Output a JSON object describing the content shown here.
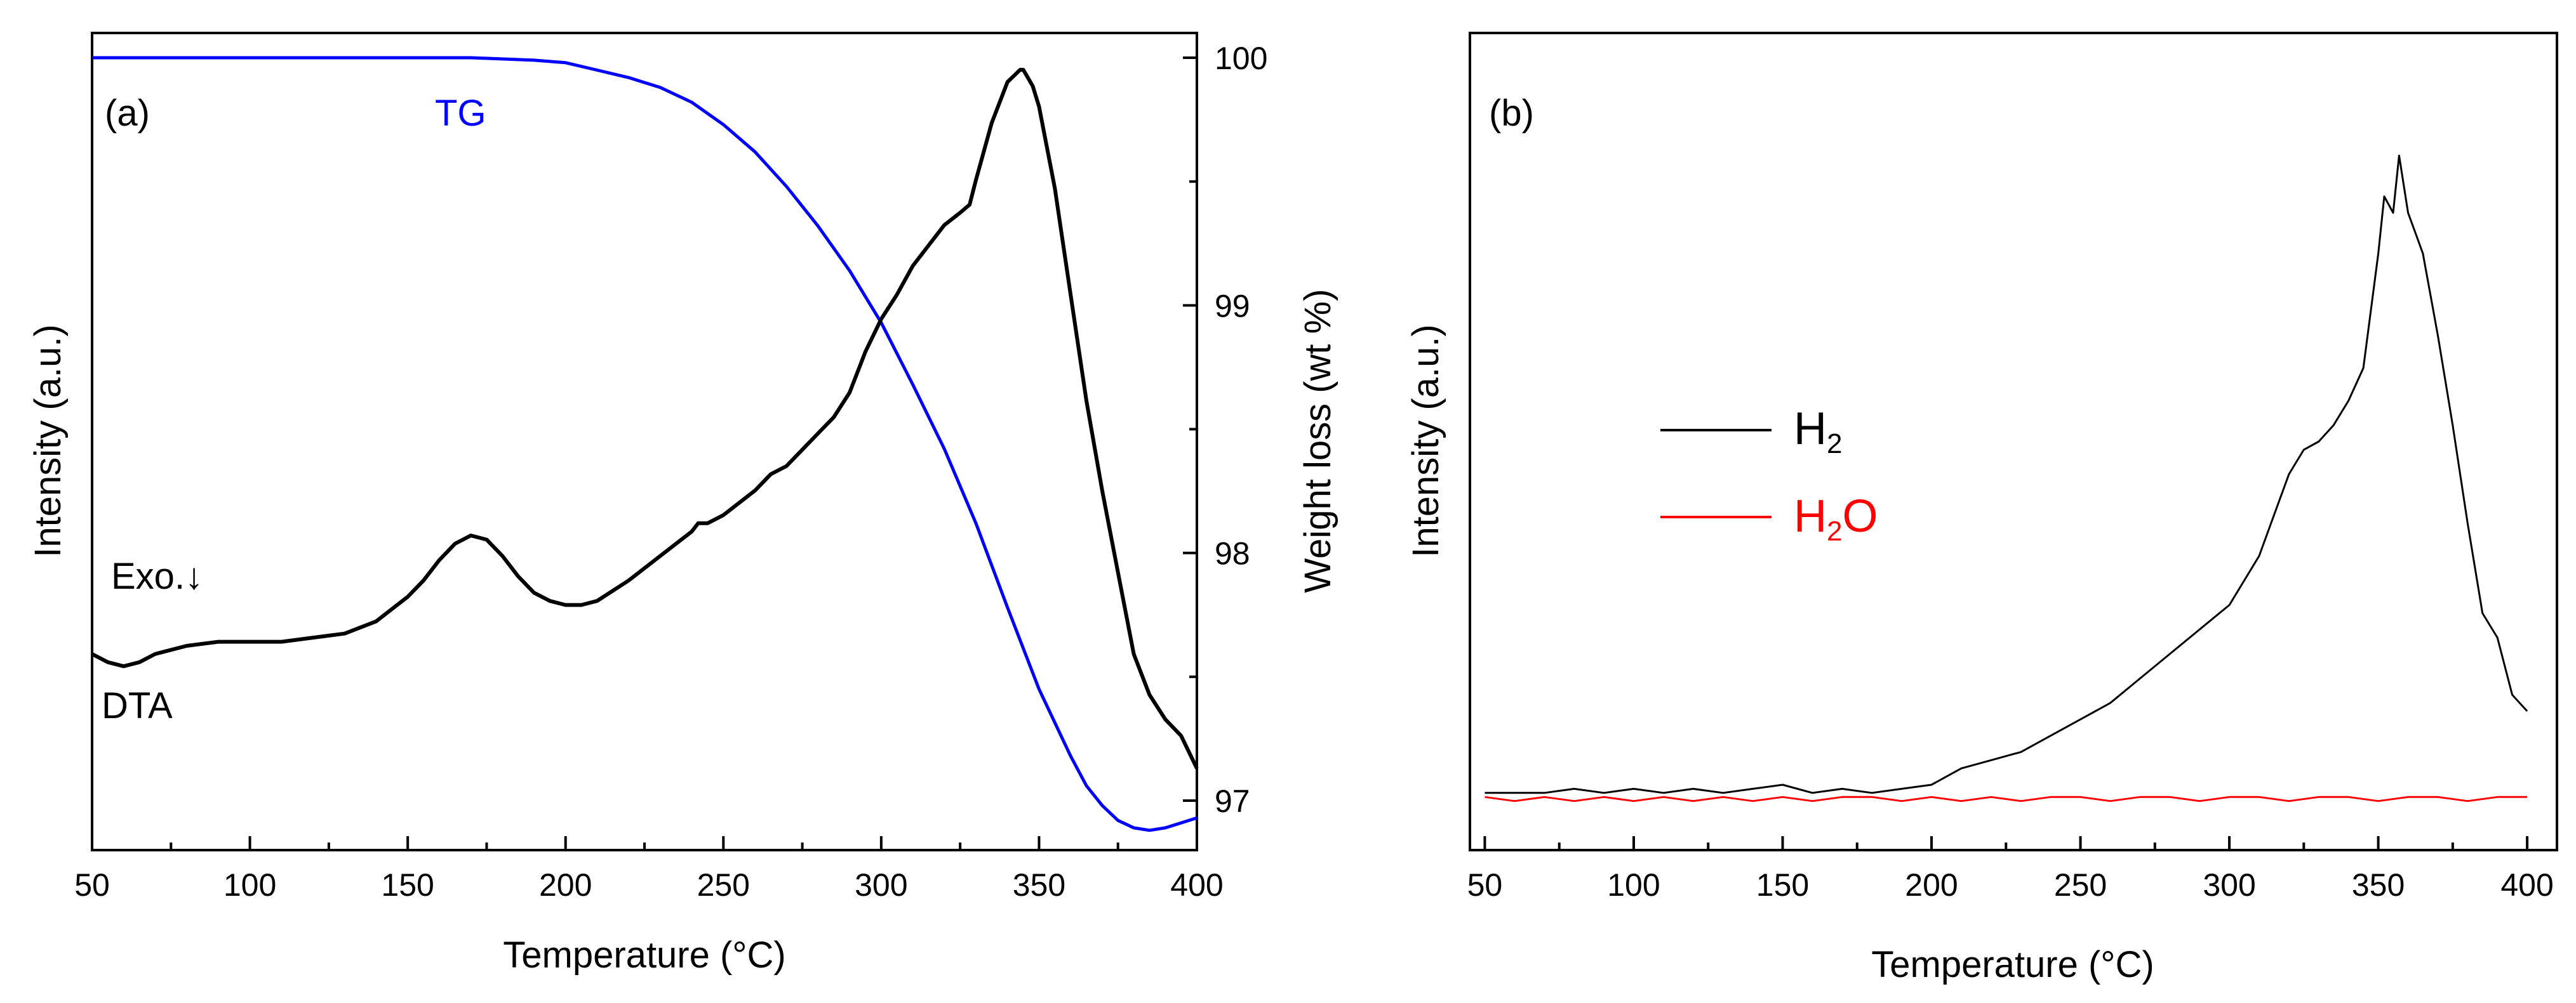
{
  "chart_data": [
    {
      "type": "line",
      "panel_label": "(a)",
      "xlabel": "Temperature (°C)",
      "ylabel_left": "Intensity (a.u.)",
      "ylabel_right": "Weight loss (wt %)",
      "xlim": [
        50,
        400
      ],
      "xticks": [
        50,
        100,
        150,
        200,
        250,
        300,
        350,
        400
      ],
      "xtick_labels": [
        "50",
        "100",
        "150",
        "200",
        "250",
        "300",
        "350",
        "400"
      ],
      "ylim_right": [
        96.8,
        100.1
      ],
      "yticks_right": [
        97,
        98,
        99,
        100
      ],
      "ytick_labels_right": [
        "97",
        "98",
        "99",
        "100"
      ],
      "ylim_left": [
        0,
        1
      ],
      "annotations": {
        "exo": "Exo.↓",
        "tg_label": "TG",
        "dta_label": "DTA"
      },
      "series": [
        {
          "name": "DTA",
          "axis": "left",
          "color": "#000000",
          "x": [
            50,
            55,
            60,
            65,
            70,
            80,
            90,
            100,
            110,
            120,
            130,
            140,
            150,
            155,
            160,
            165,
            170,
            175,
            180,
            185,
            190,
            195,
            200,
            205,
            210,
            220,
            230,
            240,
            242,
            245,
            250,
            255,
            260,
            265,
            270,
            280,
            285,
            290,
            295,
            300,
            305,
            310,
            315,
            320,
            325,
            328,
            330,
            335,
            340,
            344,
            345,
            348,
            350,
            355,
            360,
            365,
            370,
            375,
            380,
            385,
            390,
            395,
            400
          ],
          "y": [
            0.24,
            0.23,
            0.225,
            0.23,
            0.24,
            0.25,
            0.255,
            0.255,
            0.255,
            0.26,
            0.265,
            0.28,
            0.31,
            0.33,
            0.355,
            0.375,
            0.385,
            0.38,
            0.36,
            0.335,
            0.315,
            0.305,
            0.3,
            0.3,
            0.305,
            0.33,
            0.36,
            0.39,
            0.4,
            0.4,
            0.41,
            0.425,
            0.44,
            0.46,
            0.47,
            0.51,
            0.53,
            0.56,
            0.61,
            0.65,
            0.68,
            0.715,
            0.74,
            0.765,
            0.78,
            0.79,
            0.82,
            0.89,
            0.94,
            0.955,
            0.955,
            0.935,
            0.91,
            0.81,
            0.68,
            0.55,
            0.44,
            0.34,
            0.24,
            0.19,
            0.16,
            0.14,
            0.1
          ]
        },
        {
          "name": "TG",
          "axis": "right",
          "color": "#0000ff",
          "x": [
            50,
            100,
            150,
            170,
            190,
            200,
            210,
            220,
            230,
            240,
            250,
            260,
            270,
            280,
            290,
            300,
            310,
            320,
            330,
            340,
            350,
            360,
            365,
            370,
            375,
            380,
            385,
            390,
            395,
            400
          ],
          "y": [
            100.0,
            100.0,
            100.0,
            100.0,
            99.99,
            99.98,
            99.95,
            99.92,
            99.88,
            99.82,
            99.73,
            99.62,
            99.48,
            99.32,
            99.14,
            98.93,
            98.68,
            98.42,
            98.12,
            97.78,
            97.45,
            97.18,
            97.06,
            96.98,
            96.92,
            96.89,
            96.88,
            96.89,
            96.91,
            96.93
          ]
        }
      ]
    },
    {
      "type": "line",
      "panel_label": "(b)",
      "xlabel": "Temperature (°C)",
      "ylabel": "Intensity (a.u.)",
      "xlim": [
        45,
        410
      ],
      "xticks": [
        50,
        100,
        150,
        200,
        250,
        300,
        350,
        400
      ],
      "xtick_labels": [
        "50",
        "100",
        "150",
        "200",
        "250",
        "300",
        "350",
        "400"
      ],
      "ylim": [
        0,
        1
      ],
      "legend": {
        "position": "center-left",
        "entries": [
          "H2",
          "H2O"
        ]
      },
      "series": [
        {
          "name": "H2",
          "color": "#000000",
          "x": [
            50,
            60,
            70,
            80,
            90,
            100,
            110,
            120,
            130,
            140,
            150,
            160,
            170,
            180,
            190,
            200,
            210,
            220,
            230,
            240,
            250,
            260,
            270,
            280,
            290,
            300,
            305,
            310,
            315,
            320,
            325,
            330,
            335,
            340,
            345,
            350,
            352,
            355,
            357,
            360,
            363,
            365,
            370,
            375,
            380,
            385,
            390,
            395,
            400
          ],
          "y": [
            0.07,
            0.07,
            0.07,
            0.075,
            0.07,
            0.075,
            0.07,
            0.075,
            0.07,
            0.075,
            0.08,
            0.07,
            0.075,
            0.07,
            0.075,
            0.08,
            0.1,
            0.11,
            0.12,
            0.14,
            0.16,
            0.18,
            0.21,
            0.24,
            0.27,
            0.3,
            0.33,
            0.36,
            0.41,
            0.46,
            0.49,
            0.5,
            0.52,
            0.55,
            0.59,
            0.73,
            0.8,
            0.78,
            0.85,
            0.78,
            0.75,
            0.73,
            0.63,
            0.52,
            0.4,
            0.29,
            0.26,
            0.19,
            0.17
          ]
        },
        {
          "name": "H2O",
          "color": "#ff0000",
          "x": [
            50,
            60,
            70,
            80,
            90,
            100,
            110,
            120,
            130,
            140,
            150,
            160,
            170,
            180,
            190,
            200,
            210,
            220,
            230,
            240,
            250,
            260,
            270,
            280,
            290,
            300,
            310,
            320,
            330,
            340,
            350,
            360,
            370,
            380,
            390,
            400
          ],
          "y": [
            0.065,
            0.06,
            0.065,
            0.06,
            0.065,
            0.06,
            0.065,
            0.06,
            0.065,
            0.06,
            0.065,
            0.06,
            0.065,
            0.065,
            0.06,
            0.065,
            0.06,
            0.065,
            0.06,
            0.065,
            0.065,
            0.06,
            0.065,
            0.065,
            0.06,
            0.065,
            0.065,
            0.06,
            0.065,
            0.065,
            0.06,
            0.065,
            0.065,
            0.06,
            0.065,
            0.065
          ]
        }
      ]
    }
  ]
}
